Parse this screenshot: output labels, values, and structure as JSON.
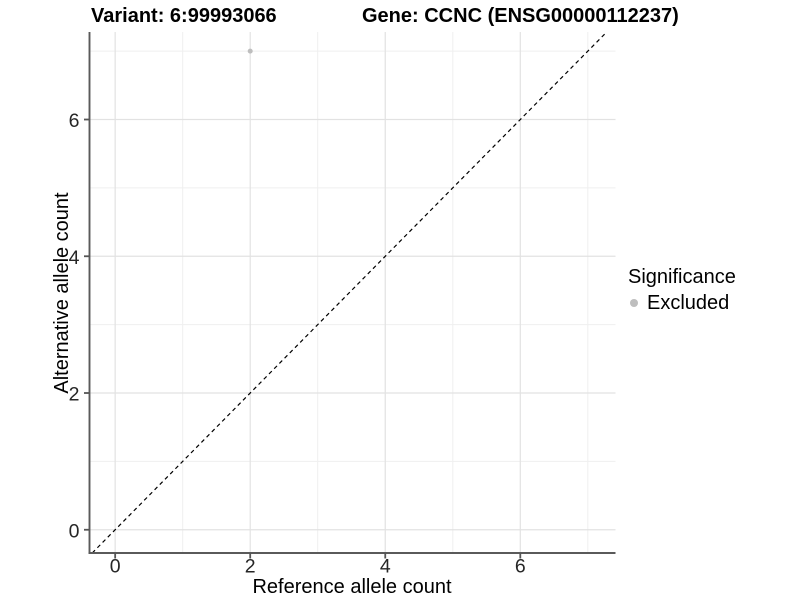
{
  "titles": {
    "variant": "Variant: 6:99993066",
    "gene": "Gene: CCNC (ENSG00000112237)"
  },
  "axes": {
    "x": {
      "label": "Reference allele count",
      "tick_labels": [
        "0",
        "2",
        "4",
        "6"
      ]
    },
    "y": {
      "label": "Alternative allele count",
      "tick_labels": [
        "0",
        "2",
        "4",
        "6"
      ]
    }
  },
  "legend": {
    "title": "Significance",
    "items": [
      {
        "label": "Excluded",
        "color": "#bebebe"
      }
    ]
  },
  "chart_data": {
    "type": "scatter",
    "title": "Variant: 6:99993066",
    "subtitle": "Gene: CCNC (ENSG00000112237)",
    "xlabel": "Reference allele count",
    "ylabel": "Alternative allele count",
    "xlim": [
      -0.38,
      7.41
    ],
    "ylim": [
      -0.34,
      7.28
    ],
    "x_major_ticks": [
      0,
      2,
      4,
      6
    ],
    "y_major_ticks": [
      0,
      2,
      4,
      6
    ],
    "x_minor_gridlines": [
      1,
      3,
      5,
      7
    ],
    "y_minor_gridlines": [
      1,
      3,
      5,
      7
    ],
    "grid": "major+minor",
    "legend_position": "right",
    "series": [
      {
        "name": "Excluded",
        "color": "#bebebe",
        "marker": "circle",
        "points": [
          {
            "x": 2,
            "y": 7
          }
        ]
      }
    ],
    "reference_line": {
      "kind": "identity",
      "slope": 1,
      "intercept": 0,
      "style": "dashed",
      "color": "#000000"
    }
  },
  "style": {
    "background": "#ffffff",
    "grid_major_color": "#e2e2e2",
    "grid_minor_color": "#efefef",
    "axis_line_color": "#5a5a5a",
    "tick_mark_color": "#555555",
    "tick_label_color": "#262626",
    "point_color": "#bebebe",
    "reference_line_color": "#000000"
  }
}
